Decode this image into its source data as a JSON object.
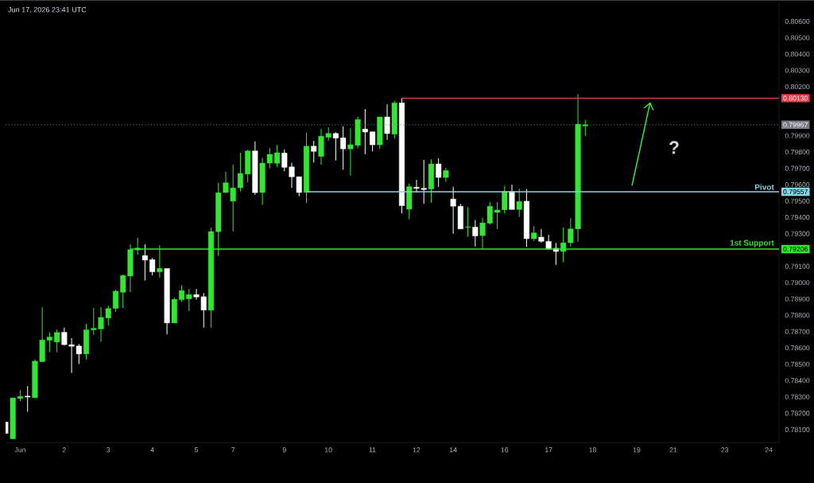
{
  "chart_data": {
    "type": "candlestick",
    "annotations": [
      "Jun 17, 2026 23:41 UTC",
      "?"
    ],
    "categories": [
      null,
      null,
      "Jun",
      null,
      null,
      null,
      null,
      null,
      "2",
      null,
      null,
      null,
      null,
      null,
      "3",
      null,
      null,
      null,
      null,
      null,
      "4",
      null,
      null,
      null,
      null,
      null,
      "5",
      null,
      null,
      null,
      null,
      "7",
      null,
      null,
      null,
      null,
      null,
      null,
      "9",
      null,
      null,
      null,
      null,
      null,
      "10",
      null,
      null,
      null,
      null,
      null,
      "11",
      null,
      null,
      null,
      null,
      null,
      "12",
      null,
      null,
      null,
      null,
      "14",
      null,
      null,
      null,
      null,
      null,
      null,
      "16",
      null,
      null,
      null,
      null,
      null,
      "17",
      null,
      null,
      null,
      null,
      null,
      "18",
      null,
      null,
      null,
      null,
      null,
      "19",
      null,
      null,
      null,
      null,
      "21",
      null,
      null,
      null,
      null,
      null,
      null,
      "23",
      null,
      null,
      null,
      null,
      null,
      "24",
      null
    ],
    "ylim": [
      0.7802,
      0.8073
    ],
    "yticks": [
      {
        "value": 0.781,
        "label": "0.78100"
      },
      {
        "value": 0.782,
        "label": "0.78200"
      },
      {
        "value": 0.783,
        "label": "0.78300"
      },
      {
        "value": 0.784,
        "label": "0.78400"
      },
      {
        "value": 0.785,
        "label": "0.78500"
      },
      {
        "value": 0.786,
        "label": "0.78600"
      },
      {
        "value": 0.787,
        "label": "0.78700"
      },
      {
        "value": 0.788,
        "label": "0.78800"
      },
      {
        "value": 0.789,
        "label": "0.78900"
      },
      {
        "value": 0.79,
        "label": "0.79000"
      },
      {
        "value": 0.791,
        "label": "0.79100"
      },
      {
        "value": 0.79206,
        "label": "0.79206"
      },
      {
        "value": 0.793,
        "label": "0.79300"
      },
      {
        "value": 0.794,
        "label": "0.79400"
      },
      {
        "value": 0.795,
        "label": "0.79500"
      },
      {
        "value": 0.79557,
        "label": "0.79557"
      },
      {
        "value": 0.796,
        "label": "0.79600"
      },
      {
        "value": 0.797,
        "label": "0.79700"
      },
      {
        "value": 0.798,
        "label": "0.79800"
      },
      {
        "value": 0.799,
        "label": "0.79900"
      },
      {
        "value": 0.79967,
        "label": "0.79967"
      },
      {
        "value": 0.8013,
        "label": "0.80130"
      },
      {
        "value": 0.802,
        "label": "0.80200"
      },
      {
        "value": 0.803,
        "label": "0.80300"
      },
      {
        "value": 0.804,
        "label": "0.80400"
      },
      {
        "value": 0.805,
        "label": "0.80500"
      },
      {
        "value": 0.806,
        "label": "0.80600"
      }
    ],
    "legend": "right",
    "ref_lines": [
      {
        "axis": "y",
        "value": 0.79967,
        "color": "#787b86",
        "line_style": "dotted"
      }
    ],
    "ohlc": [
      [
        0.78147,
        0.78147,
        0.78076,
        0.78076
      ],
      [
        0.78043,
        0.78294,
        0.78043,
        0.78294
      ],
      [
        0.7829,
        0.78342,
        0.78274,
        0.78303
      ],
      [
        0.78305,
        0.78366,
        0.78209,
        0.78299
      ],
      [
        0.78295,
        0.78529,
        0.78295,
        0.78519
      ],
      [
        0.78516,
        0.78849,
        0.78513,
        0.78649
      ],
      [
        0.78647,
        0.78695,
        0.78574,
        0.78667
      ],
      [
        0.78636,
        0.78713,
        0.78574,
        0.78695
      ],
      [
        0.78696,
        0.78724,
        0.78615,
        0.7862
      ],
      [
        0.7862,
        0.7866,
        0.78447,
        0.7861
      ],
      [
        0.78612,
        0.78625,
        0.78501,
        0.78563
      ],
      [
        0.78563,
        0.78747,
        0.78529,
        0.78711
      ],
      [
        0.78711,
        0.78845,
        0.78681,
        0.7872
      ],
      [
        0.78716,
        0.7885,
        0.78638,
        0.78787
      ],
      [
        0.78783,
        0.78858,
        0.78737,
        0.78842
      ],
      [
        0.78842,
        0.78956,
        0.78822,
        0.78948
      ],
      [
        0.78941,
        0.7905,
        0.78845,
        0.79044
      ],
      [
        0.7904,
        0.79235,
        0.78942,
        0.79202
      ],
      [
        0.792,
        0.79274,
        0.79171,
        0.79212
      ],
      [
        0.79166,
        0.79235,
        0.79013,
        0.79138
      ],
      [
        0.79141,
        0.79151,
        0.79045,
        0.79066
      ],
      [
        0.79066,
        0.79229,
        0.79032,
        0.79087
      ],
      [
        0.79087,
        0.79087,
        0.78683,
        0.78753
      ],
      [
        0.78753,
        0.78907,
        0.78753,
        0.78898
      ],
      [
        0.78896,
        0.78984,
        0.78883,
        0.78951
      ],
      [
        0.789,
        0.78962,
        0.78826,
        0.78927
      ],
      [
        0.78927,
        0.78961,
        0.78896,
        0.78912
      ],
      [
        0.78914,
        0.78937,
        0.78724,
        0.78832
      ],
      [
        0.78831,
        0.79339,
        0.78724,
        0.79313
      ],
      [
        0.79312,
        0.79612,
        0.79164,
        0.79551
      ],
      [
        0.79552,
        0.7968,
        0.79549,
        0.79612
      ],
      [
        0.79499,
        0.79724,
        0.79313,
        0.7958
      ],
      [
        0.79581,
        0.79796,
        0.79558,
        0.79669
      ],
      [
        0.79665,
        0.79814,
        0.79614,
        0.79807
      ],
      [
        0.79807,
        0.79865,
        0.79538,
        0.79551
      ],
      [
        0.79552,
        0.79765,
        0.79476,
        0.79732
      ],
      [
        0.79732,
        0.79825,
        0.797,
        0.79786
      ],
      [
        0.79731,
        0.79844,
        0.79706,
        0.79796
      ],
      [
        0.79794,
        0.79816,
        0.79682,
        0.79706
      ],
      [
        0.79709,
        0.79735,
        0.79581,
        0.79648
      ],
      [
        0.79649,
        0.79649,
        0.79528,
        0.79552
      ],
      [
        0.79553,
        0.79918,
        0.79487,
        0.79836
      ],
      [
        0.79836,
        0.79869,
        0.79736,
        0.79804
      ],
      [
        0.79773,
        0.79942,
        0.79722,
        0.79897
      ],
      [
        0.7989,
        0.79952,
        0.79869,
        0.79914
      ],
      [
        0.79914,
        0.79921,
        0.79748,
        0.79885
      ],
      [
        0.79887,
        0.79958,
        0.79692,
        0.79819
      ],
      [
        0.79819,
        0.79947,
        0.79655,
        0.79845
      ],
      [
        0.79841,
        0.80017,
        0.79822,
        0.79999
      ],
      [
        0.79941,
        0.80064,
        0.79787,
        0.79922
      ],
      [
        0.79924,
        0.79924,
        0.79804,
        0.79844
      ],
      [
        0.79844,
        0.80015,
        0.7982,
        0.80015
      ],
      [
        0.80015,
        0.80093,
        0.79875,
        0.79913
      ],
      [
        0.79909,
        0.80114,
        0.79882,
        0.80101
      ],
      [
        0.80101,
        0.8013,
        0.79424,
        0.79471
      ],
      [
        0.7945,
        0.79606,
        0.79388,
        0.79588
      ],
      [
        0.79585,
        0.7963,
        0.79552,
        0.79577
      ],
      [
        0.79578,
        0.79752,
        0.79484,
        0.7957
      ],
      [
        0.79573,
        0.79755,
        0.7949,
        0.79727
      ],
      [
        0.79727,
        0.79761,
        0.79586,
        0.79644
      ],
      [
        0.79644,
        0.79703,
        0.79617,
        0.79687
      ],
      [
        0.79512,
        0.79588,
        0.793,
        0.79468
      ],
      [
        0.79468,
        0.79483,
        0.79329,
        0.79329
      ],
      [
        0.79339,
        0.79462,
        0.79281,
        0.79342
      ],
      [
        0.7934,
        0.79383,
        0.79221,
        0.79286
      ],
      [
        0.79288,
        0.79397,
        0.79207,
        0.79366
      ],
      [
        0.79364,
        0.79494,
        0.79356,
        0.79468
      ],
      [
        0.7943,
        0.79495,
        0.79329,
        0.79445
      ],
      [
        0.79446,
        0.79592,
        0.79422,
        0.79558
      ],
      [
        0.79558,
        0.79601,
        0.79448,
        0.79448
      ],
      [
        0.79448,
        0.79576,
        0.79402,
        0.79497
      ],
      [
        0.79499,
        0.79573,
        0.79219,
        0.79269
      ],
      [
        0.79269,
        0.79346,
        0.79256,
        0.79305
      ],
      [
        0.79279,
        0.79329,
        0.79245,
        0.79253
      ],
      [
        0.79253,
        0.79292,
        0.792,
        0.79207
      ],
      [
        0.79211,
        0.79244,
        0.79109,
        0.79191
      ],
      [
        0.79191,
        0.79338,
        0.79127,
        0.79244
      ],
      [
        0.79244,
        0.79395,
        0.79221,
        0.79329
      ],
      [
        0.79329,
        0.80155,
        0.79251,
        0.79971
      ],
      [
        0.7996,
        0.79996,
        0.79898,
        0.79967
      ],
      null,
      null,
      null,
      null,
      null,
      null,
      null,
      null,
      null,
      null,
      null,
      null,
      null,
      null,
      null,
      null,
      null,
      null,
      null,
      null,
      null,
      null,
      null,
      null,
      null,
      null
    ],
    "colors": [
      "#ffffff",
      "#33e633",
      "#33e633",
      "#ffffff",
      "#33e633",
      "#33e633",
      "#33e633",
      "#33e633",
      "#ffffff",
      "#ffffff",
      "#ffffff",
      "#33e633",
      "#33e633",
      "#33e633",
      "#33e633",
      "#33e633",
      "#33e633",
      "#33e633",
      "#33e633",
      "#ffffff",
      "#ffffff",
      "#33e633",
      "#ffffff",
      "#33e633",
      "#33e633",
      "#33e633",
      "#ffffff",
      "#ffffff",
      "#33e633",
      "#33e633",
      "#33e633",
      "#33e633",
      "#33e633",
      "#33e633",
      "#ffffff",
      "#33e633",
      "#33e633",
      "#33e633",
      "#ffffff",
      "#ffffff",
      "#ffffff",
      "#33e633",
      "#ffffff",
      "#33e633",
      "#33e633",
      "#ffffff",
      "#ffffff",
      "#33e633",
      "#33e633",
      "#ffffff",
      "#ffffff",
      "#33e633",
      "#ffffff",
      "#33e633",
      "#ffffff",
      "#33e633",
      "#ffffff",
      "#ffffff",
      "#33e633",
      "#ffffff",
      "#33e633",
      "#ffffff",
      "#ffffff",
      "#33e633",
      "#ffffff",
      "#33e633",
      "#33e633",
      "#33e633",
      "#33e633",
      "#ffffff",
      "#33e633",
      "#ffffff",
      "#33e633",
      "#ffffff",
      "#ffffff",
      "#ffffff",
      "#33e633",
      "#33e633",
      "#33e633",
      "#33e633",
      null,
      null,
      null,
      null,
      null,
      null,
      null,
      null,
      null,
      null,
      null,
      null,
      null,
      null,
      null,
      null,
      null,
      null,
      null,
      null,
      null,
      null,
      null,
      null,
      null,
      null
    ],
    "series": [
      {
        "type": "line",
        "color": "#f23645",
        "values": [
          null,
          null,
          null,
          null,
          null,
          null,
          null,
          null,
          null,
          null,
          null,
          null,
          null,
          null,
          null,
          null,
          null,
          null,
          null,
          null,
          null,
          null,
          null,
          null,
          null,
          null,
          null,
          null,
          null,
          null,
          null,
          null,
          null,
          null,
          null,
          null,
          null,
          null,
          null,
          null,
          null,
          null,
          null,
          null,
          null,
          null,
          null,
          null,
          null,
          null,
          null,
          null,
          null,
          null,
          0.8013,
          0.8013,
          0.8013,
          0.8013,
          0.8013,
          0.8013,
          0.8013,
          0.8013,
          0.8013,
          0.8013,
          0.8013,
          0.8013,
          0.8013,
          0.8013,
          0.8013,
          0.8013,
          0.8013,
          0.8013,
          0.8013,
          0.8013,
          0.8013,
          0.8013,
          0.8013,
          0.8013,
          0.8013,
          0.8013,
          0.8013,
          0.8013,
          0.8013,
          0.8013,
          0.8013,
          0.8013,
          0.8013,
          0.8013,
          0.8013,
          0.8013,
          0.8013,
          0.8013,
          0.8013,
          0.8013,
          0.8013,
          0.8013,
          0.8013,
          0.8013,
          0.8013,
          0.8013,
          0.8013,
          0.8013,
          0.8013,
          0.8013,
          0.8013,
          0.8013
        ]
      },
      {
        "type": "line",
        "name": "Pivot",
        "color": "#7fd8e4",
        "values": [
          null,
          null,
          null,
          null,
          null,
          null,
          null,
          null,
          null,
          null,
          null,
          null,
          null,
          null,
          null,
          null,
          null,
          null,
          null,
          null,
          null,
          null,
          null,
          null,
          null,
          null,
          null,
          null,
          null,
          null,
          null,
          null,
          null,
          null,
          null,
          null,
          null,
          null,
          null,
          null,
          null,
          0.79557,
          0.79557,
          0.79557,
          0.79557,
          0.79557,
          0.79557,
          0.79557,
          0.79557,
          0.79557,
          0.79557,
          0.79557,
          0.79557,
          0.79557,
          0.79557,
          0.79557,
          0.79557,
          0.79557,
          0.79557,
          0.79557,
          0.79557,
          0.79557,
          0.79557,
          0.79557,
          0.79557,
          0.79557,
          0.79557,
          0.79557,
          0.79557,
          0.79557,
          0.79557,
          0.79557,
          0.79557,
          0.79557,
          0.79557,
          0.79557,
          0.79557,
          0.79557,
          0.79557,
          0.79557,
          0.79557,
          0.79557,
          0.79557,
          0.79557,
          0.79557,
          0.79557,
          0.79557,
          0.79557,
          0.79557,
          0.79557,
          0.79557,
          0.79557,
          0.79557,
          0.79557,
          0.79557,
          0.79557,
          0.79557,
          0.79557,
          0.79557,
          0.79557,
          0.79557,
          0.79557,
          0.79557,
          0.79557,
          0.79557,
          0.79557
        ]
      },
      {
        "type": "line",
        "name": "1st Support",
        "color": "#2ee82e",
        "values": [
          null,
          null,
          null,
          null,
          null,
          null,
          null,
          null,
          null,
          null,
          null,
          null,
          null,
          null,
          null,
          null,
          null,
          0.79206,
          0.79206,
          0.79206,
          0.79206,
          0.79206,
          0.79206,
          0.79206,
          0.79206,
          0.79206,
          0.79206,
          0.79206,
          0.79206,
          0.79206,
          0.79206,
          0.79206,
          0.79206,
          0.79206,
          0.79206,
          0.79206,
          0.79206,
          0.79206,
          0.79206,
          0.79206,
          0.79206,
          0.79206,
          0.79206,
          0.79206,
          0.79206,
          0.79206,
          0.79206,
          0.79206,
          0.79206,
          0.79206,
          0.79206,
          0.79206,
          0.79206,
          0.79206,
          0.79206,
          0.79206,
          0.79206,
          0.79206,
          0.79206,
          0.79206,
          0.79206,
          0.79206,
          0.79206,
          0.79206,
          0.79206,
          0.79206,
          0.79206,
          0.79206,
          0.79206,
          0.79206,
          0.79206,
          0.79206,
          0.79206,
          0.79206,
          0.79206,
          0.79206,
          0.79206,
          0.79206,
          0.79206,
          0.79206,
          0.79206,
          0.79206,
          0.79206,
          0.79206,
          0.79206,
          0.79206,
          0.79206,
          0.79206,
          0.79206,
          0.79206,
          0.79206,
          0.79206,
          0.79206,
          0.79206,
          0.79206,
          0.79206,
          0.79206,
          0.79206,
          0.79206,
          0.79206,
          0.79206,
          0.79206,
          0.79206,
          0.79206,
          0.79206,
          0.79206
        ]
      }
    ]
  }
}
